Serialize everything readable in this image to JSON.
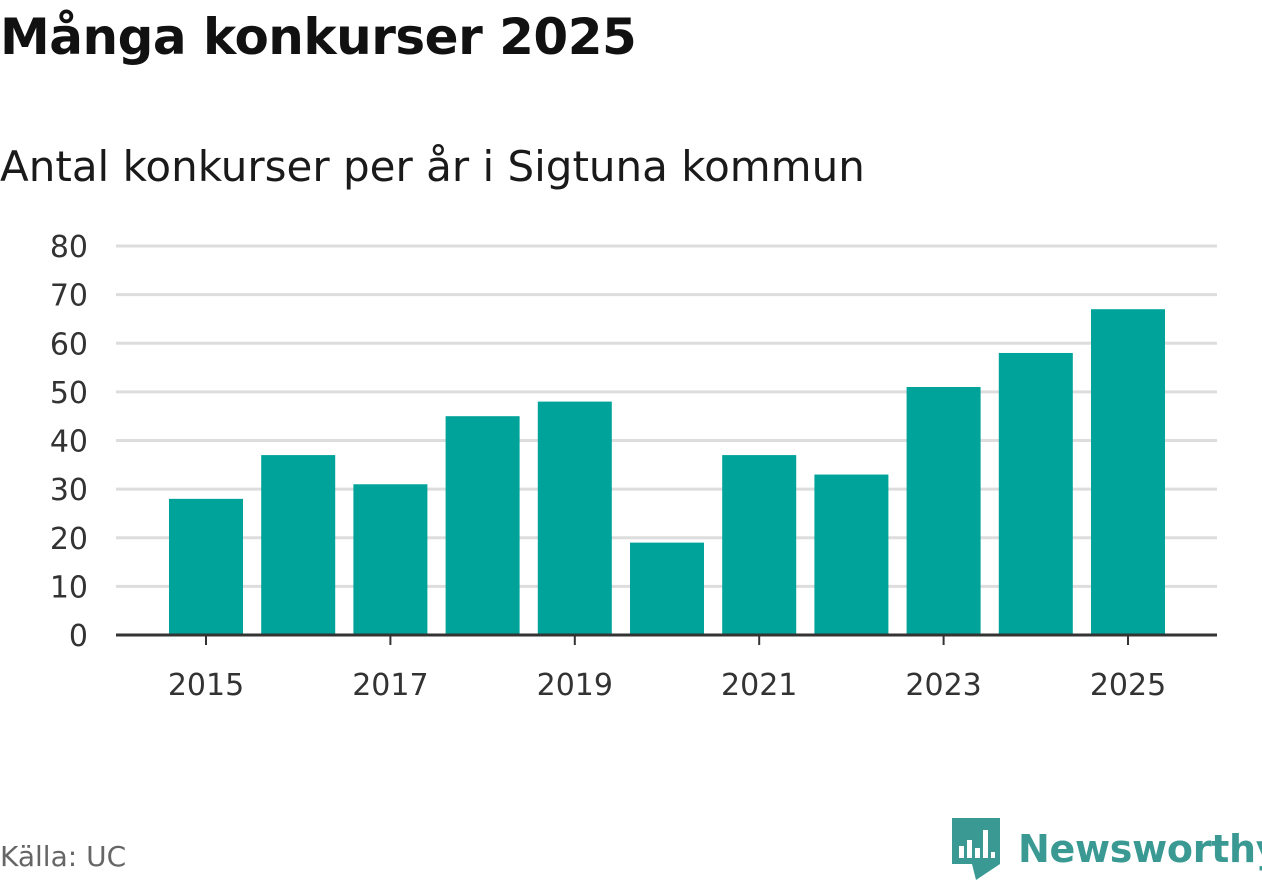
{
  "title": "Många konkurser 2025",
  "subtitle": "Antal konkurser per år i Sigtuna kommun",
  "source": "Källa: UC",
  "brand": {
    "name": "Newsworthy",
    "icon": "newsworthy-logo-icon",
    "color": "#3a9a93"
  },
  "chart_data": {
    "type": "bar",
    "x": [
      2015,
      2016,
      2017,
      2018,
      2019,
      2020,
      2021,
      2022,
      2023,
      2024,
      2025
    ],
    "values": [
      28,
      37,
      31,
      45,
      48,
      19,
      37,
      33,
      51,
      58,
      67
    ],
    "x_tick_labels": [
      "2015",
      "2017",
      "2019",
      "2021",
      "2023",
      "2025"
    ],
    "y_ticks": [
      "0",
      "10",
      "20",
      "30",
      "40",
      "50",
      "60",
      "70",
      "80"
    ],
    "ylim": [
      0,
      80
    ],
    "grid": true,
    "bar_color": "#00a39a",
    "grid_color": "#dddddd",
    "axis_color": "#333333"
  }
}
